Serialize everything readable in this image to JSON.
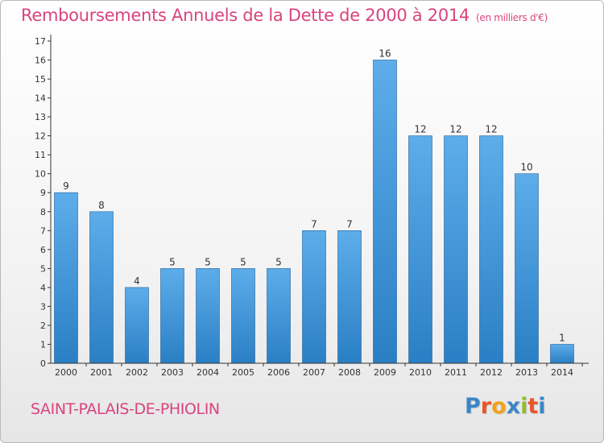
{
  "chart_data": {
    "type": "bar",
    "title": "Remboursements Annuels de la Dette de 2000 à 2014",
    "unit": "(en milliers d'€)",
    "categories": [
      "2000",
      "2001",
      "2002",
      "2003",
      "2004",
      "2005",
      "2006",
      "2007",
      "2008",
      "2009",
      "2010",
      "2011",
      "2012",
      "2013",
      "2014"
    ],
    "values": [
      9,
      8,
      4,
      5,
      5,
      5,
      5,
      7,
      7,
      16,
      12,
      12,
      12,
      10,
      1
    ],
    "yticks": [
      0,
      1,
      2,
      3,
      4,
      5,
      6,
      7,
      8,
      9,
      10,
      11,
      12,
      13,
      14,
      15,
      16,
      17
    ],
    "ylim": [
      0,
      17
    ],
    "xlabel": "",
    "ylabel": "",
    "grid": false
  },
  "footer": {
    "location": "SAINT-PALAIS-DE-PHIOLIN",
    "brand_letters": [
      "P",
      "r",
      "o",
      "x",
      "i",
      "t",
      "i"
    ]
  },
  "colors": {
    "title": "#d9447d",
    "bar_light": "#5dadea",
    "bar_dark": "#2a7fc4",
    "axis": "#333333",
    "brand": [
      "#3a86c8",
      "#e8552a",
      "#f2a21c",
      "#3a86c8",
      "#8fbf2f",
      "#e8552a",
      "#3a86c8"
    ]
  }
}
